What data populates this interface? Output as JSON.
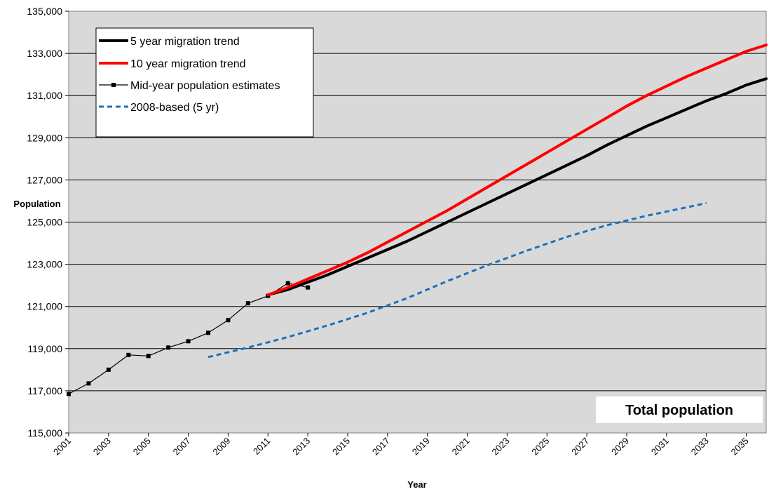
{
  "chart_data": {
    "type": "line",
    "title": "",
    "xlabel": "Year",
    "ylabel": "Population",
    "annotation": "Total population",
    "xlim": [
      2001,
      2036
    ],
    "ylim": [
      115000,
      135000
    ],
    "y_ticks": [
      "115,000",
      "117,000",
      "119,000",
      "121,000",
      "123,000",
      "125,000",
      "127,000",
      "129,000",
      "131,000",
      "133,000",
      "135,000"
    ],
    "x_ticks": [
      "2001",
      "2003",
      "2005",
      "2007",
      "2009",
      "2011",
      "2013",
      "2015",
      "2017",
      "2019",
      "2021",
      "2023",
      "2025",
      "2027",
      "2029",
      "2031",
      "2033",
      "2035"
    ],
    "grid": true,
    "legend_position": "top-left",
    "colors": {
      "plot_background": "#d9d9d9",
      "five_year": "#000000",
      "ten_year": "#ff0000",
      "estimates": "#000000",
      "based_2008": "#1f6fc0"
    },
    "series": [
      {
        "name": "5 year migration trend",
        "key": "five_year",
        "style": "thick",
        "x": [
          2011,
          2012,
          2013,
          2014,
          2015,
          2016,
          2017,
          2018,
          2019,
          2020,
          2021,
          2022,
          2023,
          2024,
          2025,
          2026,
          2027,
          2028,
          2029,
          2030,
          2031,
          2032,
          2033,
          2034,
          2035,
          2036
        ],
        "y": [
          121550,
          121800,
          122150,
          122500,
          122900,
          123300,
          123700,
          124100,
          124550,
          125000,
          125450,
          125900,
          126350,
          126800,
          127250,
          127700,
          128150,
          128650,
          129100,
          129550,
          129950,
          130350,
          130750,
          131100,
          131500,
          131800
        ]
      },
      {
        "name": "10 year migration trend",
        "key": "ten_year",
        "style": "thick",
        "x": [
          2011,
          2012,
          2013,
          2014,
          2015,
          2016,
          2017,
          2018,
          2019,
          2020,
          2021,
          2022,
          2023,
          2024,
          2025,
          2026,
          2027,
          2028,
          2029,
          2030,
          2031,
          2032,
          2033,
          2034,
          2035,
          2036
        ],
        "y": [
          121550,
          121900,
          122300,
          122700,
          123100,
          123550,
          124050,
          124550,
          125050,
          125550,
          126100,
          126650,
          127200,
          127750,
          128300,
          128850,
          129400,
          129950,
          130500,
          131000,
          131450,
          131900,
          132300,
          132700,
          133100,
          133400
        ]
      },
      {
        "name": "Mid-year population estimates",
        "key": "estimates",
        "style": "markers",
        "x": [
          2001,
          2002,
          2003,
          2004,
          2005,
          2006,
          2007,
          2008,
          2009,
          2010,
          2011,
          2012,
          2013
        ],
        "y": [
          116850,
          117350,
          118000,
          118700,
          118650,
          119050,
          119350,
          119750,
          120350,
          121150,
          121500,
          122100,
          121900
        ]
      },
      {
        "name": "2008-based (5 yr)",
        "key": "based_2008",
        "style": "dashed",
        "x": [
          2008,
          2010,
          2012,
          2014,
          2016,
          2018,
          2020,
          2022,
          2024,
          2026,
          2028,
          2030,
          2032,
          2033
        ],
        "y": [
          118600,
          119050,
          119550,
          120100,
          120700,
          121400,
          122200,
          122950,
          123650,
          124300,
          124850,
          125300,
          125700,
          125900
        ]
      }
    ]
  }
}
